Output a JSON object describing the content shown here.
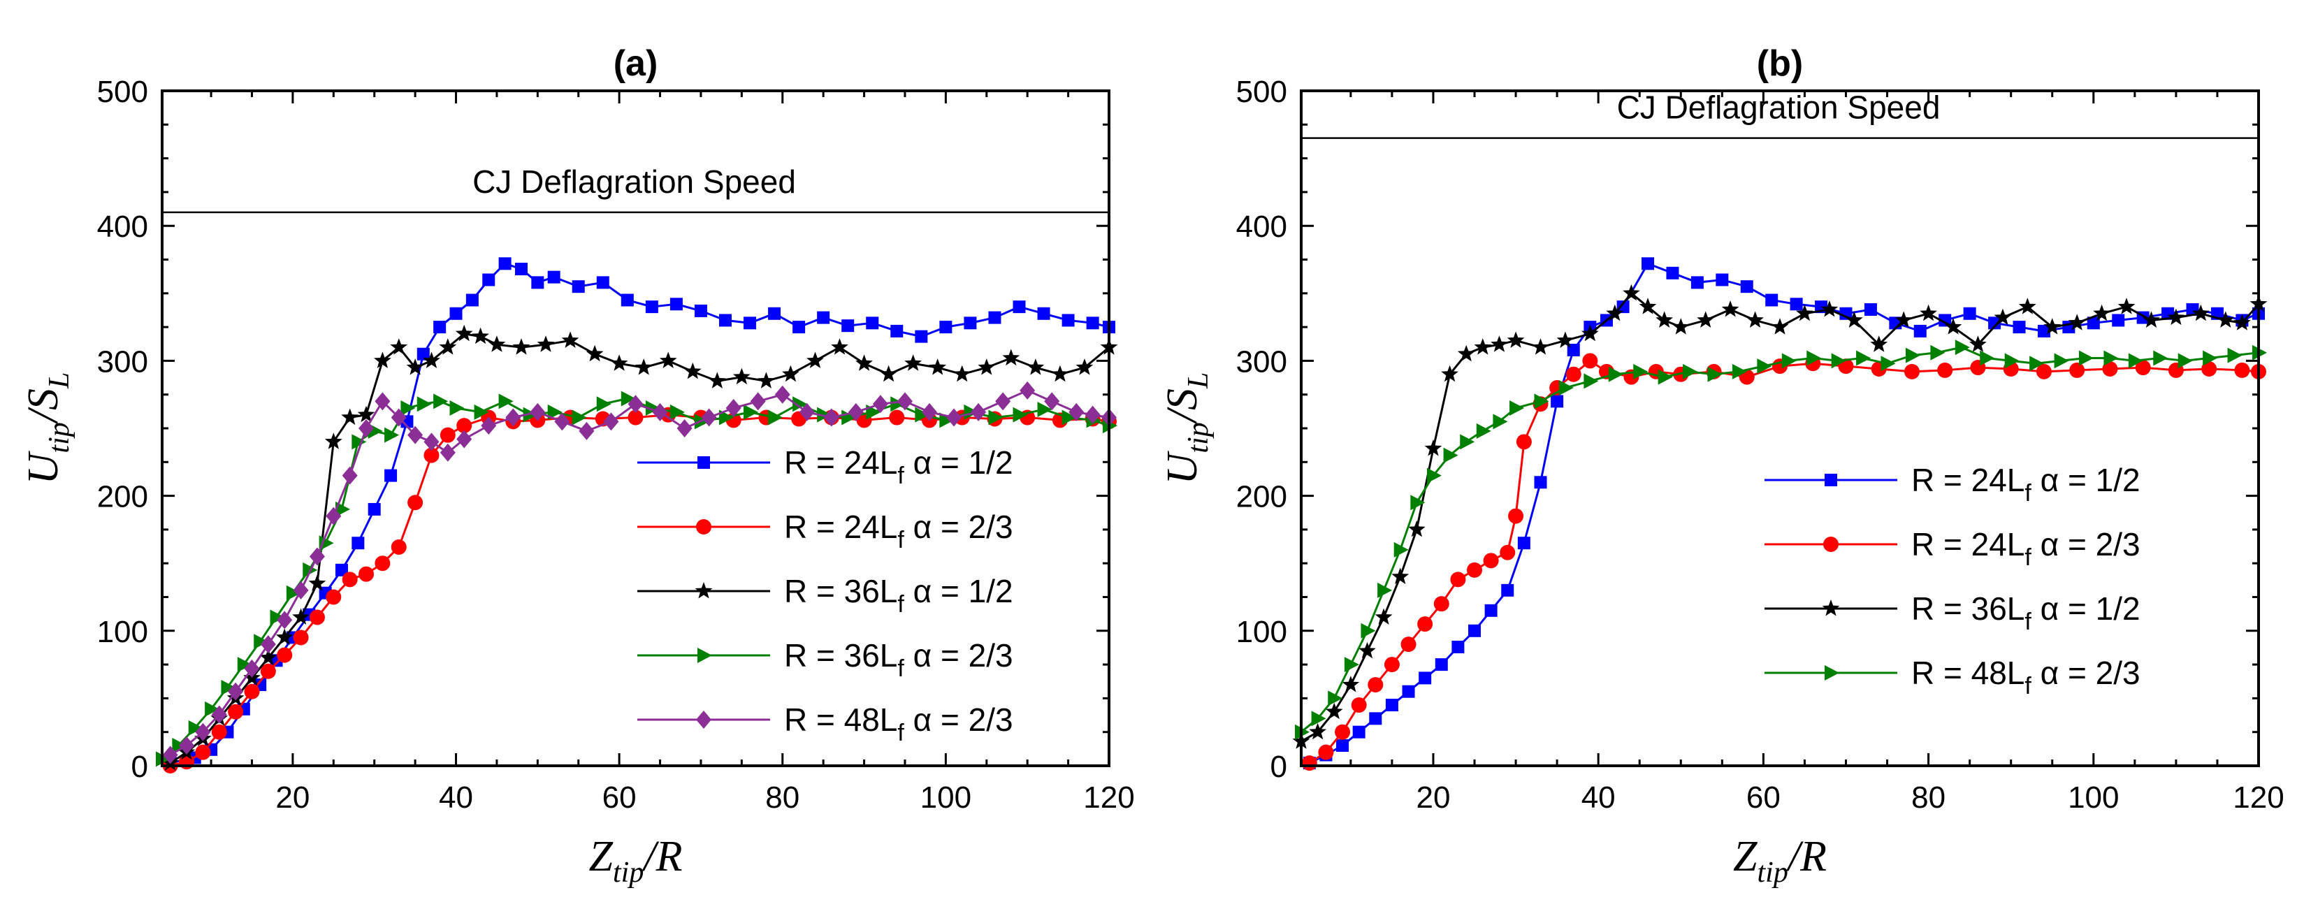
{
  "chart_data": [
    {
      "type": "line",
      "title": "(a)",
      "xlabel": "Z_tip/R",
      "ylabel": "U_tip/S_L",
      "xlim": [
        4,
        120
      ],
      "ylim": [
        0,
        500
      ],
      "xticks": [
        20,
        40,
        60,
        80,
        100,
        120
      ],
      "yticks": [
        0,
        100,
        200,
        300,
        400,
        500
      ],
      "reference_line": {
        "label": "CJ Deflagration Speed",
        "y": 410
      },
      "legend_position": "lower-right",
      "series": [
        {
          "name": "R = 24L",
          "name_sub": "f",
          "name_tail": " α = 1/2",
          "color": "#0000ff",
          "marker": "square",
          "x": [
            5,
            8,
            10,
            12,
            14,
            16,
            18,
            20,
            22,
            24,
            26,
            28,
            30,
            32,
            34,
            36,
            38,
            40,
            42,
            44,
            46,
            48,
            50,
            52,
            55,
            58,
            61,
            64,
            67,
            70,
            73,
            76,
            79,
            82,
            85,
            88,
            91,
            94,
            97,
            100,
            103,
            106,
            109,
            112,
            115,
            118,
            120
          ],
          "y": [
            2,
            6,
            12,
            25,
            42,
            60,
            78,
            95,
            112,
            128,
            145,
            165,
            190,
            215,
            255,
            305,
            325,
            335,
            345,
            360,
            372,
            368,
            358,
            362,
            355,
            358,
            345,
            340,
            342,
            337,
            330,
            328,
            335,
            325,
            332,
            326,
            328,
            322,
            318,
            325,
            328,
            332,
            340,
            335,
            330,
            328,
            325
          ]
        },
        {
          "name": "R = 24L",
          "name_sub": "f",
          "name_tail": " α = 2/3",
          "color": "#ff0000",
          "marker": "circle",
          "x": [
            5,
            7,
            9,
            11,
            13,
            15,
            17,
            19,
            21,
            23,
            25,
            27,
            29,
            31,
            33,
            35,
            37,
            39,
            41,
            44,
            47,
            50,
            54,
            58,
            62,
            66,
            70,
            74,
            78,
            82,
            86,
            90,
            94,
            98,
            102,
            106,
            110,
            114,
            118,
            120
          ],
          "y": [
            0,
            3,
            10,
            25,
            40,
            55,
            70,
            82,
            95,
            110,
            125,
            138,
            142,
            150,
            162,
            195,
            230,
            245,
            252,
            258,
            255,
            256,
            258,
            257,
            258,
            260,
            258,
            256,
            258,
            257,
            258,
            256,
            258,
            256,
            258,
            257,
            258,
            256,
            257,
            255
          ]
        },
        {
          "name": "R = 36L",
          "name_sub": "f",
          "name_tail": " α = 1/2",
          "color": "#000000",
          "marker": "star",
          "x": [
            5,
            7,
            9,
            11,
            13,
            15,
            17,
            19,
            21,
            23,
            25,
            27,
            29,
            31,
            33,
            35,
            37,
            39,
            41,
            43,
            45,
            48,
            51,
            54,
            57,
            60,
            63,
            66,
            69,
            72,
            75,
            78,
            81,
            84,
            87,
            90,
            93,
            96,
            99,
            102,
            105,
            108,
            111,
            114,
            117,
            120
          ],
          "y": [
            2,
            10,
            20,
            35,
            50,
            65,
            80,
            95,
            110,
            135,
            240,
            258,
            260,
            300,
            310,
            295,
            300,
            310,
            320,
            318,
            312,
            310,
            312,
            315,
            305,
            298,
            295,
            300,
            292,
            285,
            288,
            285,
            290,
            300,
            310,
            298,
            290,
            298,
            295,
            290,
            295,
            302,
            295,
            290,
            295,
            310
          ]
        },
        {
          "name": "R = 36L",
          "name_sub": "f",
          "name_tail": " α = 2/3",
          "color": "#008000",
          "marker": "triangle-right",
          "x": [
            4,
            6,
            8,
            10,
            12,
            14,
            16,
            18,
            20,
            22,
            24,
            26,
            28,
            30,
            32,
            34,
            36,
            38,
            40,
            43,
            46,
            49,
            52,
            55,
            58,
            61,
            64,
            67,
            70,
            73,
            76,
            79,
            82,
            85,
            88,
            91,
            94,
            97,
            100,
            103,
            106,
            109,
            112,
            115,
            118,
            120
          ],
          "y": [
            5,
            15,
            28,
            42,
            58,
            75,
            92,
            110,
            128,
            145,
            165,
            190,
            240,
            248,
            245,
            265,
            268,
            270,
            265,
            262,
            270,
            260,
            262,
            258,
            268,
            272,
            265,
            262,
            255,
            258,
            262,
            258,
            268,
            260,
            258,
            262,
            268,
            260,
            256,
            262,
            258,
            260,
            264,
            258,
            256,
            252
          ]
        },
        {
          "name": "R = 48L",
          "name_sub": "f",
          "name_tail": " α = 2/3",
          "color": "#8b2f97",
          "marker": "diamond",
          "x": [
            5,
            7,
            9,
            11,
            13,
            15,
            17,
            19,
            21,
            23,
            25,
            27,
            29,
            31,
            33,
            35,
            37,
            39,
            41,
            44,
            47,
            50,
            53,
            56,
            59,
            62,
            65,
            68,
            71,
            74,
            77,
            80,
            83,
            86,
            89,
            92,
            95,
            98,
            101,
            104,
            107,
            110,
            113,
            116,
            118,
            120
          ],
          "y": [
            8,
            15,
            25,
            38,
            55,
            72,
            90,
            108,
            130,
            155,
            185,
            215,
            250,
            270,
            258,
            245,
            240,
            232,
            242,
            252,
            258,
            262,
            255,
            248,
            255,
            268,
            262,
            250,
            258,
            265,
            270,
            275,
            262,
            258,
            262,
            268,
            270,
            262,
            258,
            262,
            270,
            278,
            270,
            262,
            260,
            258
          ]
        }
      ]
    },
    {
      "type": "line",
      "title": "(b)",
      "xlabel": "Z_tip/R",
      "ylabel": "U_tip/S_L",
      "xlim": [
        4,
        120
      ],
      "ylim": [
        0,
        500
      ],
      "xticks": [
        20,
        40,
        60,
        80,
        100,
        120
      ],
      "yticks": [
        0,
        100,
        200,
        300,
        400,
        500
      ],
      "reference_line": {
        "label": "CJ Deflagration Speed",
        "y": 465
      },
      "legend_position": "lower-right",
      "series": [
        {
          "name": "R = 24L",
          "name_sub": "f",
          "name_tail": " α = 1/2",
          "color": "#0000ff",
          "marker": "square",
          "x": [
            5,
            7,
            9,
            11,
            13,
            15,
            17,
            19,
            21,
            23,
            25,
            27,
            29,
            31,
            33,
            35,
            37,
            39,
            41,
            43,
            46,
            49,
            52,
            55,
            58,
            61,
            64,
            67,
            70,
            73,
            76,
            79,
            82,
            85,
            88,
            91,
            94,
            97,
            100,
            103,
            106,
            109,
            112,
            115,
            118,
            120
          ],
          "y": [
            2,
            8,
            15,
            25,
            35,
            45,
            55,
            65,
            75,
            88,
            100,
            115,
            130,
            165,
            210,
            270,
            308,
            325,
            330,
            340,
            372,
            365,
            358,
            360,
            355,
            345,
            342,
            340,
            335,
            338,
            328,
            322,
            330,
            335,
            328,
            325,
            322,
            325,
            328,
            330,
            332,
            335,
            338,
            335,
            330,
            335
          ]
        },
        {
          "name": "R = 24L",
          "name_sub": "f",
          "name_tail": " α = 2/3",
          "color": "#ff0000",
          "marker": "circle",
          "x": [
            5,
            7,
            9,
            11,
            13,
            15,
            17,
            19,
            21,
            23,
            25,
            27,
            29,
            30,
            31,
            33,
            35,
            37,
            39,
            41,
            44,
            47,
            50,
            54,
            58,
            62,
            66,
            70,
            74,
            78,
            82,
            86,
            90,
            94,
            98,
            102,
            106,
            110,
            114,
            118,
            120
          ],
          "y": [
            2,
            10,
            25,
            45,
            60,
            75,
            90,
            105,
            120,
            138,
            145,
            152,
            158,
            185,
            240,
            268,
            280,
            290,
            300,
            292,
            288,
            292,
            290,
            292,
            288,
            296,
            298,
            296,
            294,
            292,
            293,
            295,
            294,
            292,
            293,
            294,
            295,
            293,
            294,
            293,
            292
          ]
        },
        {
          "name": "R = 36L",
          "name_sub": "f",
          "name_tail": " α = 1/2",
          "color": "#000000",
          "marker": "star",
          "x": [
            4,
            6,
            8,
            10,
            12,
            14,
            16,
            18,
            20,
            22,
            24,
            26,
            28,
            30,
            33,
            36,
            39,
            42,
            44,
            46,
            48,
            50,
            53,
            56,
            59,
            62,
            65,
            68,
            71,
            74,
            77,
            80,
            83,
            86,
            89,
            92,
            95,
            98,
            101,
            104,
            107,
            110,
            113,
            116,
            118,
            120
          ],
          "y": [
            18,
            25,
            40,
            60,
            85,
            110,
            140,
            175,
            235,
            290,
            305,
            310,
            312,
            315,
            310,
            315,
            320,
            335,
            350,
            340,
            330,
            325,
            330,
            338,
            330,
            325,
            335,
            338,
            330,
            312,
            330,
            335,
            325,
            312,
            332,
            340,
            325,
            328,
            335,
            340,
            330,
            332,
            335,
            330,
            328,
            342
          ]
        },
        {
          "name": "R = 48L",
          "name_sub": "f",
          "name_tail": " α = 2/3",
          "color": "#008000",
          "marker": "triangle-right",
          "x": [
            4,
            6,
            8,
            10,
            12,
            14,
            16,
            18,
            20,
            22,
            24,
            26,
            28,
            30,
            33,
            36,
            39,
            42,
            45,
            48,
            51,
            54,
            57,
            60,
            63,
            66,
            69,
            72,
            75,
            78,
            81,
            84,
            87,
            90,
            93,
            96,
            99,
            102,
            105,
            108,
            111,
            114,
            117,
            120
          ],
          "y": [
            25,
            35,
            50,
            75,
            100,
            130,
            160,
            195,
            215,
            230,
            240,
            248,
            255,
            265,
            270,
            280,
            285,
            290,
            292,
            288,
            292,
            290,
            292,
            296,
            300,
            302,
            300,
            302,
            298,
            304,
            306,
            310,
            302,
            300,
            298,
            300,
            302,
            302,
            300,
            302,
            300,
            302,
            304,
            306
          ]
        }
      ]
    }
  ]
}
